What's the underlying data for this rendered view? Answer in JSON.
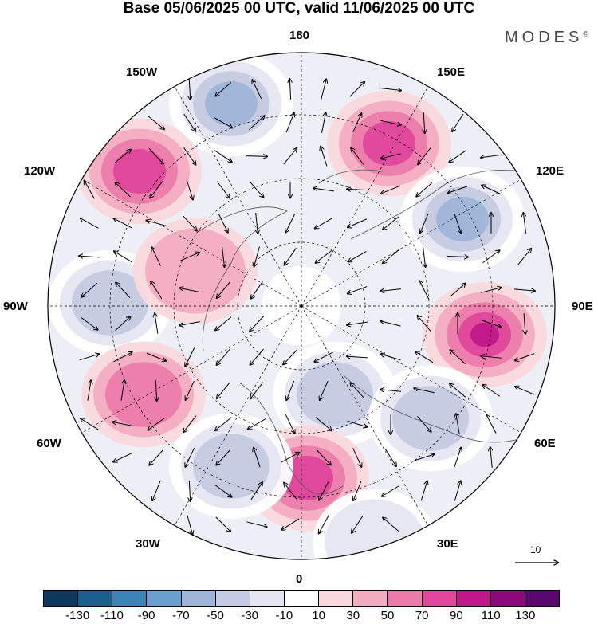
{
  "header": {
    "title": "Base 05/06/2025 00 UTC, valid 11/06/2025 00 UTC",
    "brand": "MODES",
    "brand_mark": "©"
  },
  "map": {
    "projection": "north-polar-stereographic",
    "longitude_labels": {
      "top": "180",
      "bottom": "0",
      "left": "90W",
      "right": "90E",
      "upper_left_1": "150W",
      "upper_left_2": "120W",
      "lower_left_1": "60W",
      "lower_left_2": "30W",
      "upper_right_1": "150E",
      "upper_right_2": "120E",
      "lower_right_1": "60E",
      "lower_right_2": "30E"
    },
    "reference_vector_label": "10",
    "anomaly_centers": [
      {
        "sign": "negative",
        "level": -70
      },
      {
        "sign": "positive",
        "level": 70
      },
      {
        "sign": "positive",
        "level": 70
      },
      {
        "sign": "negative",
        "level": -70
      },
      {
        "sign": "negative",
        "level": -50
      },
      {
        "sign": "positive",
        "level": 90
      },
      {
        "sign": "positive",
        "level": 50
      },
      {
        "sign": "positive",
        "level": 30
      },
      {
        "sign": "negative",
        "level": -50
      },
      {
        "sign": "negative",
        "level": -50
      },
      {
        "sign": "positive",
        "level": 70
      },
      {
        "sign": "negative",
        "level": -50
      },
      {
        "sign": "negative",
        "level": -30
      }
    ]
  },
  "colorbar": {
    "ticks": [
      "-130",
      "-110",
      "-90",
      "-70",
      "-50",
      "-30",
      "-10",
      "10",
      "30",
      "50",
      "70",
      "90",
      "110",
      "130"
    ],
    "colors": [
      "#0d3a5c",
      "#1b5f8c",
      "#3a84b8",
      "#6b9fcc",
      "#9fb5d8",
      "#c4cbe2",
      "#e6e6f2",
      "#ffffff",
      "#f9d9dd",
      "#f3adc0",
      "#ec7cab",
      "#e0479c",
      "#c0188a",
      "#8a0a7e",
      "#5a0870"
    ]
  }
}
